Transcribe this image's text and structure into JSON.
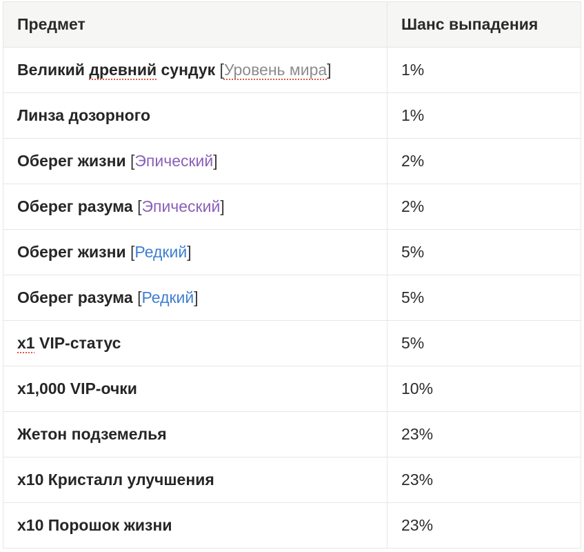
{
  "table": {
    "headers": {
      "item": "Предмет",
      "chance": "Шанс выпадения"
    },
    "rows": [
      {
        "name_a": "Великий ",
        "name_spell": "древний",
        "name_b": " сундук",
        "tag": "Уровень мира",
        "tag_type": "world",
        "chance": "1%"
      },
      {
        "name": "Линза дозорного",
        "chance": "1%"
      },
      {
        "name": "Оберег жизни",
        "tag": "Эпический",
        "tag_type": "epic",
        "chance": "2%"
      },
      {
        "name": "Оберег разума",
        "tag": "Эпический",
        "tag_type": "epic",
        "chance": "2%"
      },
      {
        "name": "Оберег жизни",
        "tag": "Редкий",
        "tag_type": "rare",
        "chance": "5%"
      },
      {
        "name": "Оберег разума",
        "tag": "Редкий",
        "tag_type": "rare",
        "chance": "5%"
      },
      {
        "name_spell": "x1",
        "name_b": " VIP-статус",
        "chance": "5%"
      },
      {
        "name": "x1,000 VIP-очки",
        "chance": "10%"
      },
      {
        "name": "Жетон подземелья",
        "chance": "23%"
      },
      {
        "name": "x10 Кристалл улучшения",
        "chance": "23%"
      },
      {
        "name": "x10 Порошок жизни",
        "chance": "23%"
      }
    ],
    "tag_brackets": {
      "open": "[",
      "close": "]"
    }
  },
  "colors": {
    "header_bg": "#f6f6f4",
    "border": "#e6e6e4",
    "tag_world": "#8c8c8c",
    "tag_epic": "#8b5fb8",
    "tag_rare": "#3f7fd0",
    "spellcheck": "#e0523e"
  }
}
